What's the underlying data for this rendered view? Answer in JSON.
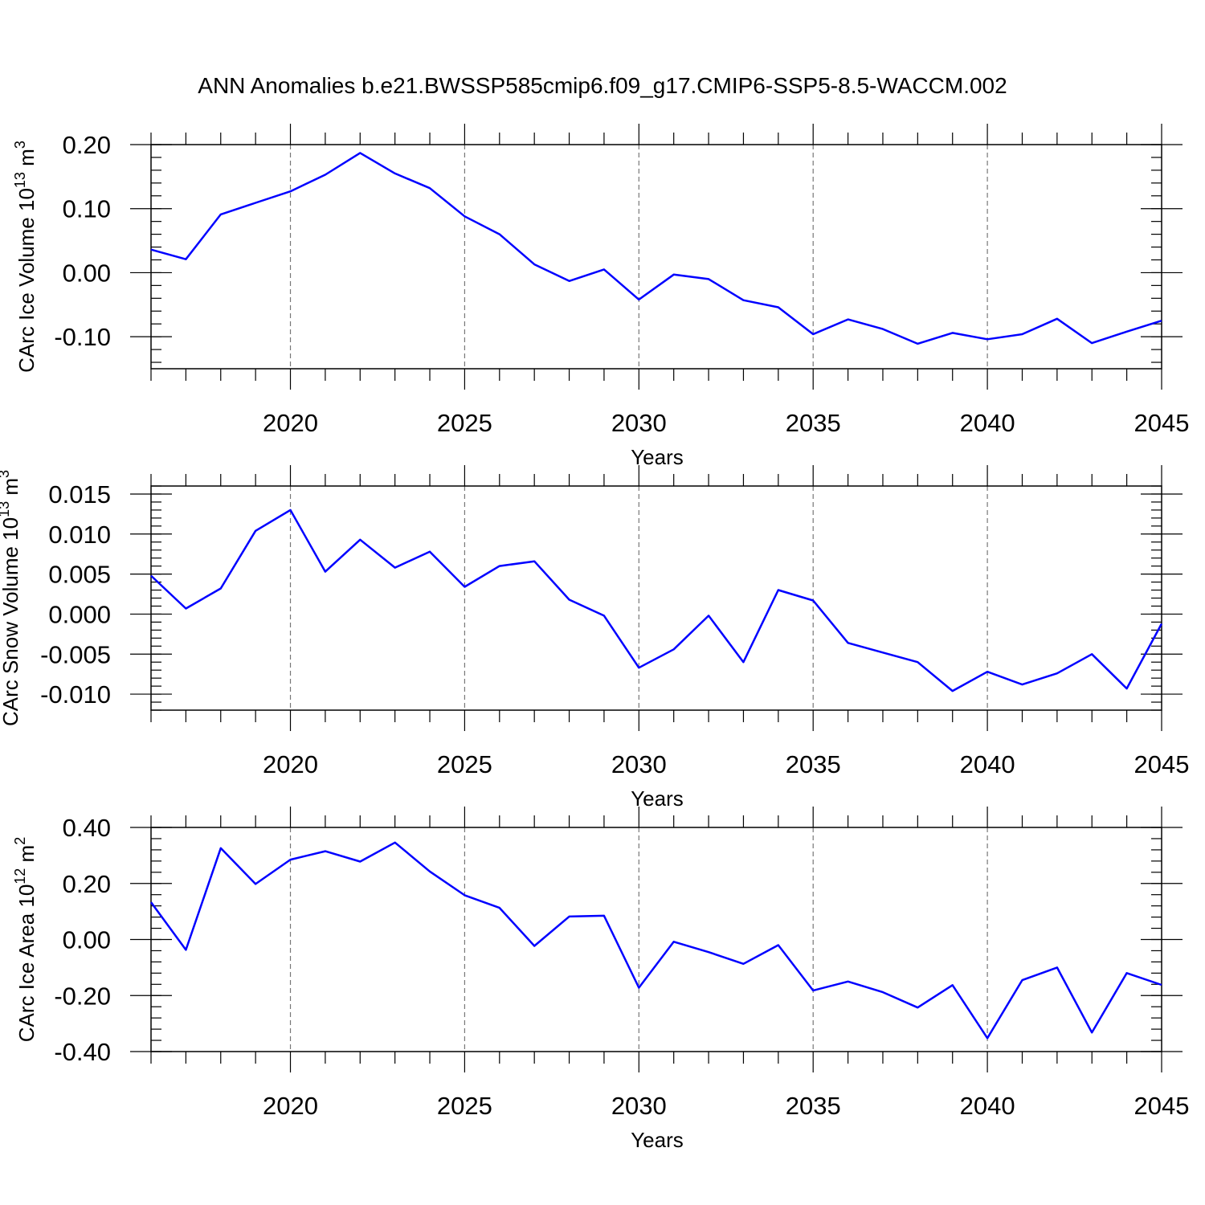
{
  "title": "ANN Anomalies b.e21.BWSSP585cmip6.f09_g17.CMIP6-SSP5-8.5-WACCM.002",
  "colors": {
    "line": "#0000ff",
    "axis": "#000000",
    "grid": "#777777"
  },
  "chart_data": [
    {
      "type": "line",
      "id": "ice-volume",
      "ylabel": {
        "text": "CArc Ice Volume 10",
        "sup": "13",
        "unit": " m",
        "unit_sup": "3"
      },
      "xlabel": "Years",
      "xlim": [
        2016,
        2045
      ],
      "ylim": [
        -0.15,
        0.2
      ],
      "xticks": [
        2020,
        2025,
        2030,
        2035,
        2040,
        2045
      ],
      "xtick_labels": [
        "2020",
        "2025",
        "2030",
        "2035",
        "2040",
        "2045"
      ],
      "yticks": [
        0.2,
        0.1,
        0.0,
        -0.1
      ],
      "ytick_labels": [
        "0.20",
        "0.10",
        "0.00",
        "-0.10"
      ],
      "y_minor_step": 0.02,
      "grid": "vertical dashed at major x ticks",
      "x": [
        2016,
        2017,
        2018,
        2019,
        2020,
        2021,
        2022,
        2023,
        2024,
        2025,
        2026,
        2027,
        2028,
        2029,
        2030,
        2031,
        2032,
        2033,
        2034,
        2035,
        2036,
        2037,
        2038,
        2039,
        2040,
        2041,
        2042,
        2043,
        2044,
        2045
      ],
      "y": [
        0.036,
        0.021,
        0.091,
        0.109,
        0.127,
        0.153,
        0.187,
        0.155,
        0.132,
        0.088,
        0.06,
        0.013,
        -0.013,
        0.005,
        -0.042,
        -0.003,
        -0.01,
        -0.043,
        -0.054,
        -0.096,
        -0.073,
        -0.088,
        -0.111,
        -0.094,
        -0.104,
        -0.096,
        -0.072,
        -0.11,
        -0.092,
        -0.075
      ]
    },
    {
      "type": "line",
      "id": "snow-volume",
      "ylabel": {
        "text": "CArc Snow Volume 10",
        "sup": "13",
        "unit": " m",
        "unit_sup": "3"
      },
      "xlabel": "Years",
      "xlim": [
        2016,
        2045
      ],
      "ylim": [
        -0.012,
        0.016
      ],
      "xticks": [
        2020,
        2025,
        2030,
        2035,
        2040,
        2045
      ],
      "xtick_labels": [
        "2020",
        "2025",
        "2030",
        "2035",
        "2040",
        "2045"
      ],
      "yticks": [
        0.015,
        0.01,
        0.005,
        0.0,
        -0.005,
        -0.01
      ],
      "ytick_labels": [
        "0.015",
        "0.010",
        "0.005",
        "0.000",
        "-0.005",
        "-0.010"
      ],
      "y_minor_step": 0.001,
      "grid": "vertical dashed at major x ticks",
      "x": [
        2016,
        2017,
        2018,
        2019,
        2020,
        2021,
        2022,
        2023,
        2024,
        2025,
        2026,
        2027,
        2028,
        2029,
        2030,
        2031,
        2032,
        2033,
        2034,
        2035,
        2036,
        2037,
        2038,
        2039,
        2040,
        2041,
        2042,
        2043,
        2044,
        2045
      ],
      "y": [
        0.0048,
        0.0007,
        0.0032,
        0.0104,
        0.013,
        0.0053,
        0.0093,
        0.0058,
        0.0078,
        0.0034,
        0.006,
        0.0066,
        0.0018,
        -0.0002,
        -0.0067,
        -0.0044,
        -0.0002,
        -0.006,
        0.003,
        0.0017,
        -0.0036,
        -0.0048,
        -0.006,
        -0.0096,
        -0.0072,
        -0.0088,
        -0.0074,
        -0.005,
        -0.0093,
        -0.0012
      ]
    },
    {
      "type": "line",
      "id": "ice-area",
      "ylabel": {
        "text": "CArc Ice Area 10",
        "sup": "12",
        "unit": " m",
        "unit_sup": "2"
      },
      "xlabel": "Years",
      "xlim": [
        2016,
        2045
      ],
      "ylim": [
        -0.4,
        0.4
      ],
      "xticks": [
        2020,
        2025,
        2030,
        2035,
        2040,
        2045
      ],
      "xtick_labels": [
        "2020",
        "2025",
        "2030",
        "2035",
        "2040",
        "2045"
      ],
      "yticks": [
        0.4,
        0.2,
        0.0,
        -0.2,
        -0.4
      ],
      "ytick_labels": [
        "0.40",
        "0.20",
        "0.00",
        "-0.20",
        "-0.40"
      ],
      "y_minor_step": 0.04,
      "grid": "vertical dashed at major x ticks",
      "x": [
        2016,
        2017,
        2018,
        2019,
        2020,
        2021,
        2022,
        2023,
        2024,
        2025,
        2026,
        2027,
        2028,
        2029,
        2030,
        2031,
        2032,
        2033,
        2034,
        2035,
        2036,
        2037,
        2038,
        2039,
        2040,
        2041,
        2042,
        2043,
        2044,
        2045
      ],
      "y": [
        0.133,
        -0.037,
        0.326,
        0.198,
        0.285,
        0.315,
        0.278,
        0.346,
        0.243,
        0.158,
        0.113,
        -0.023,
        0.082,
        0.085,
        -0.172,
        -0.008,
        -0.045,
        -0.087,
        -0.02,
        -0.182,
        -0.15,
        -0.188,
        -0.243,
        -0.163,
        -0.352,
        -0.145,
        -0.1,
        -0.332,
        -0.12,
        -0.162
      ]
    }
  ]
}
